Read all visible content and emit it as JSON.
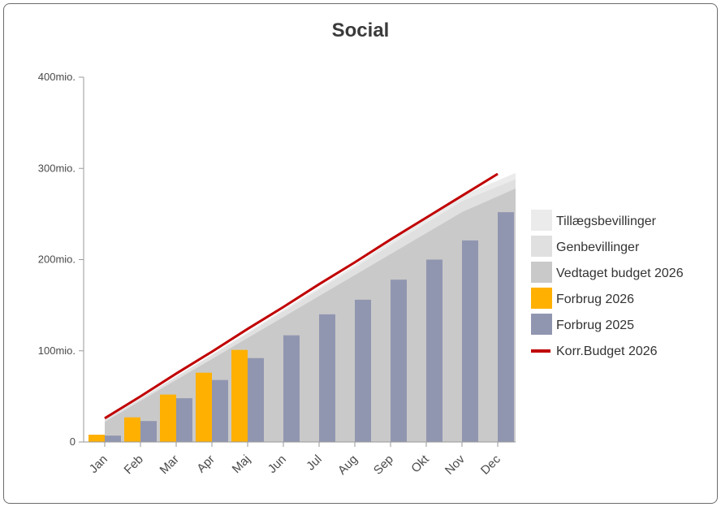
{
  "chart_data": {
    "type": "bar",
    "title": "Social",
    "categories": [
      "Jan",
      "Feb",
      "Mar",
      "Apr",
      "Maj",
      "Jun",
      "Jul",
      "Aug",
      "Sep",
      "Okt",
      "Nov",
      "Dec"
    ],
    "yticks": [
      {
        "value": 0,
        "label": "0"
      },
      {
        "value": 100,
        "label": "100mio."
      },
      {
        "value": 200,
        "label": "200mio."
      },
      {
        "value": 300,
        "label": "300mio."
      },
      {
        "value": 400,
        "label": "400mio."
      }
    ],
    "ylim": [
      0,
      400
    ],
    "grid": false,
    "legend_position": "right",
    "series": [
      {
        "name": "Tillægsbevillinger",
        "type": "area",
        "color": "#ebebeb",
        "values": [
          25,
          48,
          72,
          96,
          120,
          145,
          169,
          194,
          220,
          245,
          270,
          295
        ]
      },
      {
        "name": "Genbevillinger",
        "type": "area",
        "color": "#e0e0e0",
        "values": [
          24,
          47,
          71,
          95,
          119,
          143,
          167,
          191,
          216,
          240,
          264,
          288
        ]
      },
      {
        "name": "Vedtaget budget 2026",
        "type": "area",
        "color": "#c9c9c9",
        "values": [
          22,
          45,
          68,
          91,
          114,
          137,
          160,
          183,
          206,
          229,
          252,
          278
        ]
      },
      {
        "name": "Forbrug 2026",
        "type": "bar",
        "color": "#ffb000",
        "values": [
          8,
          27,
          52,
          76,
          101,
          null,
          null,
          null,
          null,
          null,
          null,
          null
        ]
      },
      {
        "name": "Forbrug 2025",
        "type": "bar",
        "color": "#9196b0",
        "values": [
          7,
          23,
          48,
          68,
          92,
          117,
          140,
          156,
          178,
          200,
          221,
          252
        ]
      },
      {
        "name": "Korr.Budget 2026",
        "type": "line",
        "color": "#c00000",
        "values": [
          26,
          50,
          75,
          99,
          124,
          148,
          173,
          197,
          222,
          246,
          270,
          294
        ]
      }
    ]
  }
}
